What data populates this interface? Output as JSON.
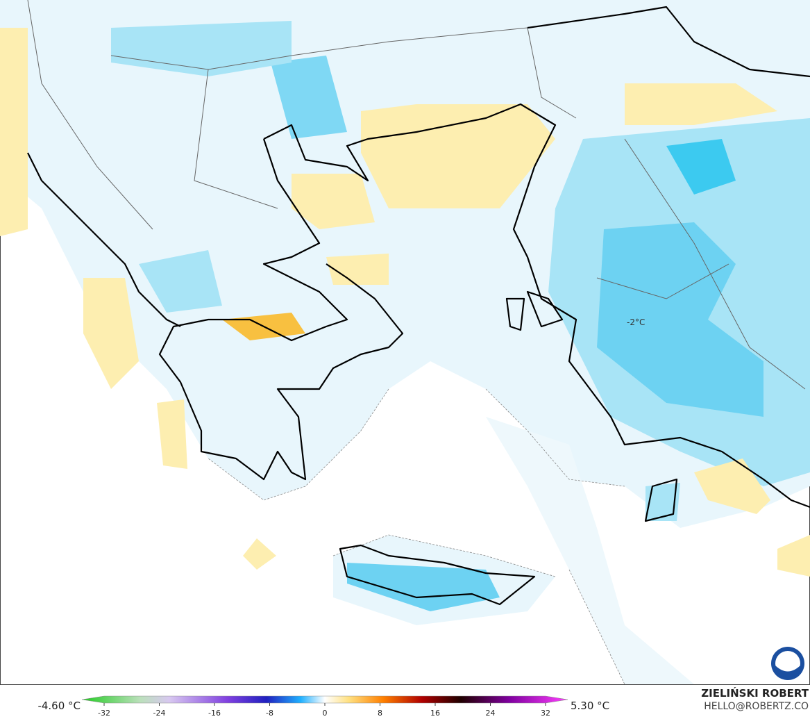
{
  "map": {
    "annotation": "-2°C"
  },
  "colorbar": {
    "min_label": "-4.60 °C",
    "max_label": "5.30 °C",
    "lim": [
      -32,
      32
    ],
    "ticks": [
      -32,
      -24,
      -16,
      -8,
      0,
      8,
      16,
      24,
      32
    ]
  },
  "credit": {
    "author": "ZIELIŃSKI ROBERT",
    "email": "HELLO@ROBERTZ.CO"
  }
}
